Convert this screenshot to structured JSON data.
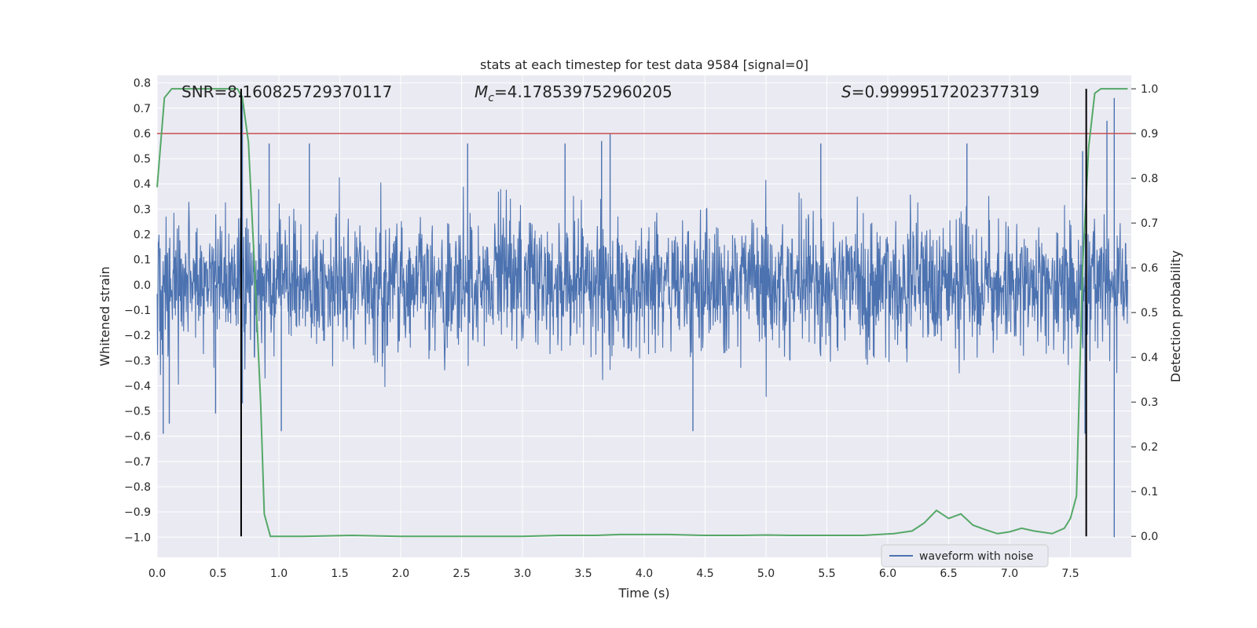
{
  "chart_data": {
    "type": "line",
    "title": "stats at each timestep for test data 9584 [signal=0]",
    "xlabel": "Time (s)",
    "ylabel_left": "Whitened strain",
    "ylabel_right": "Detection probability",
    "xlim": [
      0.0,
      8.0
    ],
    "ylim_left": [
      -1.08,
      0.83
    ],
    "ylim_right": [
      -0.047,
      1.03
    ],
    "x_ticks": [
      "0.0",
      "0.5",
      "1.0",
      "1.5",
      "2.0",
      "2.5",
      "3.0",
      "3.5",
      "4.0",
      "4.5",
      "5.0",
      "5.5",
      "6.0",
      "6.5",
      "7.0",
      "7.5"
    ],
    "x_tick_values": [
      0.0,
      0.5,
      1.0,
      1.5,
      2.0,
      2.5,
      3.0,
      3.5,
      4.0,
      4.5,
      5.0,
      5.5,
      6.0,
      6.5,
      7.0,
      7.5
    ],
    "y_left_ticks": [
      "0.8",
      "0.7",
      "0.6",
      "0.5",
      "0.4",
      "0.3",
      "0.2",
      "0.1",
      "0.0",
      "−0.1",
      "−0.2",
      "−0.3",
      "−0.4",
      "−0.5",
      "−0.6",
      "−0.7",
      "−0.8",
      "−0.9",
      "−1.0"
    ],
    "y_left_tick_values": [
      0.8,
      0.7,
      0.6,
      0.5,
      0.4,
      0.3,
      0.2,
      0.1,
      0.0,
      -0.1,
      -0.2,
      -0.3,
      -0.4,
      -0.5,
      -0.6,
      -0.7,
      -0.8,
      -0.9,
      -1.0
    ],
    "y_right_ticks": [
      "1.0",
      "0.9",
      "0.8",
      "0.7",
      "0.6",
      "0.5",
      "0.4",
      "0.3",
      "0.2",
      "0.1",
      "0.0"
    ],
    "y_right_tick_values": [
      1.0,
      0.9,
      0.8,
      0.7,
      0.6,
      0.5,
      0.4,
      0.3,
      0.2,
      0.1,
      0.0
    ],
    "annotations": {
      "snr": "SNR=8.160825729370117",
      "mc_prefix": "M",
      "mc_sub": "c",
      "mc_value": "=4.178539752960205",
      "s_prefix": "S",
      "s_value": "=0.9999517202377319"
    },
    "threshold": {
      "value": 0.9,
      "axis": "right",
      "color": "#c44e52"
    },
    "vertical_lines": [
      0.69,
      7.63
    ],
    "series": [
      {
        "name": "waveform with noise",
        "axis": "left",
        "color": "#4c72b0",
        "kind": "noise",
        "sigma": 0.13,
        "spikes": [
          {
            "x": 0.05,
            "y": -0.59
          },
          {
            "x": 0.1,
            "y": -0.55
          },
          {
            "x": 0.48,
            "y": -0.51
          },
          {
            "x": 0.7,
            "y": 0.75
          },
          {
            "x": 0.7,
            "y": -0.47
          },
          {
            "x": 0.92,
            "y": 0.56
          },
          {
            "x": 1.02,
            "y": -0.58
          },
          {
            "x": 1.25,
            "y": 0.56
          },
          {
            "x": 2.55,
            "y": 0.56
          },
          {
            "x": 3.35,
            "y": 0.56
          },
          {
            "x": 3.72,
            "y": 0.6
          },
          {
            "x": 3.65,
            "y": 0.57
          },
          {
            "x": 4.4,
            "y": -0.58
          },
          {
            "x": 5.45,
            "y": 0.56
          },
          {
            "x": 6.65,
            "y": 0.56
          },
          {
            "x": 7.62,
            "y": -0.59
          },
          {
            "x": 7.8,
            "y": 0.65
          },
          {
            "x": 7.86,
            "y": 0.74
          },
          {
            "x": 7.86,
            "y": -1.0
          },
          {
            "x": 7.6,
            "y": 0.53
          }
        ]
      },
      {
        "name": "Detection probability",
        "axis": "right",
        "color": "#55a868",
        "x": [
          0.0,
          0.06,
          0.12,
          0.2,
          0.3,
          0.4,
          0.5,
          0.6,
          0.66,
          0.7,
          0.75,
          0.8,
          0.85,
          0.88,
          0.93,
          1.0,
          1.2,
          1.6,
          2.0,
          2.5,
          3.0,
          3.3,
          3.6,
          3.8,
          3.9,
          4.0,
          4.2,
          4.5,
          4.8,
          5.0,
          5.2,
          5.5,
          5.8,
          6.05,
          6.2,
          6.3,
          6.4,
          6.5,
          6.6,
          6.7,
          6.8,
          6.9,
          7.0,
          7.1,
          7.2,
          7.35,
          7.45,
          7.5,
          7.55,
          7.6,
          7.65,
          7.7,
          7.75,
          7.8,
          7.9,
          7.97
        ],
        "values": [
          0.78,
          0.98,
          1.0,
          1.0,
          1.0,
          1.0,
          1.0,
          1.0,
          1.0,
          0.98,
          0.88,
          0.6,
          0.3,
          0.05,
          0.0,
          0.0,
          0.0,
          0.002,
          0.0,
          0.0,
          0.0,
          0.002,
          0.002,
          0.004,
          0.004,
          0.004,
          0.004,
          0.002,
          0.002,
          0.003,
          0.002,
          0.002,
          0.002,
          0.006,
          0.012,
          0.03,
          0.058,
          0.04,
          0.05,
          0.025,
          0.015,
          0.006,
          0.01,
          0.018,
          0.012,
          0.006,
          0.018,
          0.04,
          0.09,
          0.6,
          0.87,
          0.99,
          1.0,
          1.0,
          1.0,
          1.0
        ]
      }
    ],
    "legend": {
      "label": "waveform with noise",
      "placement": "lower-right"
    }
  }
}
